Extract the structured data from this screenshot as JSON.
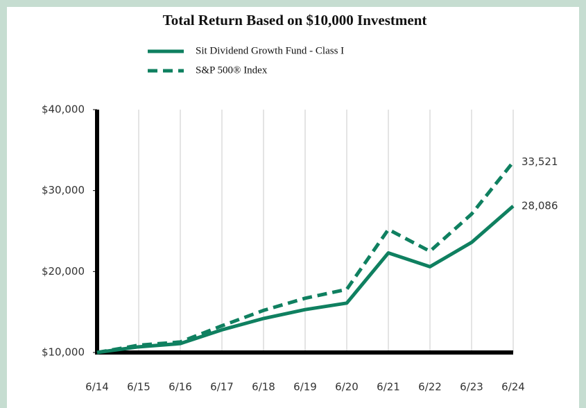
{
  "chart_data": {
    "type": "line",
    "title": "Total Return Based on $10,000 Investment",
    "categories": [
      "6/14",
      "6/15",
      "6/16",
      "6/17",
      "6/18",
      "6/19",
      "6/20",
      "6/21",
      "6/22",
      "6/23",
      "6/24"
    ],
    "series": [
      {
        "name": "Sit Dividend Growth Fund - Class I",
        "color": "#0f8060",
        "line_style": "solid",
        "values": [
          10000,
          10700,
          11100,
          12800,
          14200,
          15300,
          16100,
          22300,
          20600,
          23600,
          28086
        ],
        "value_labels": [
          null,
          null,
          null,
          null,
          null,
          null,
          null,
          null,
          null,
          null,
          "28,086"
        ]
      },
      {
        "name": "S&P 500® Index",
        "color": "#0f8060",
        "line_style": "dashed",
        "values": [
          10000,
          10900,
          11300,
          13300,
          15200,
          16700,
          17800,
          25200,
          22500,
          27100,
          33521
        ],
        "value_labels": [
          null,
          null,
          null,
          null,
          null,
          null,
          null,
          null,
          null,
          null,
          "33,521"
        ]
      }
    ],
    "ylim": [
      10000,
      40000
    ],
    "yticks": [
      {
        "value": 10000,
        "label": "$10,000"
      },
      {
        "value": 20000,
        "label": "$20,000"
      },
      {
        "value": 30000,
        "label": "$30,000"
      },
      {
        "value": 40000,
        "label": "$40,000"
      }
    ],
    "grid": true,
    "legend": "top"
  }
}
